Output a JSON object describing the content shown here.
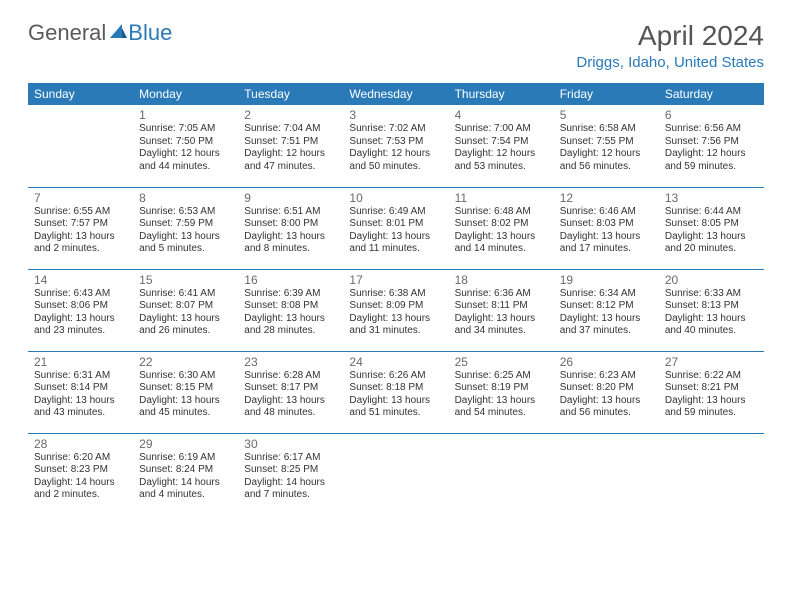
{
  "logo": {
    "text1": "General",
    "text2": "Blue"
  },
  "title": "April 2024",
  "location": "Driggs, Idaho, United States",
  "dayHeaders": [
    "Sunday",
    "Monday",
    "Tuesday",
    "Wednesday",
    "Thursday",
    "Friday",
    "Saturday"
  ],
  "colors": {
    "header_bg": "#2a7ab8",
    "header_text": "#ffffff",
    "accent": "#2a7ab8",
    "body_text": "#333333",
    "day_num": "#6a6a6a"
  },
  "weeks": [
    [
      {
        "num": "",
        "sunrise": "",
        "sunset": "",
        "daylight1": "",
        "daylight2": ""
      },
      {
        "num": "1",
        "sunrise": "Sunrise: 7:05 AM",
        "sunset": "Sunset: 7:50 PM",
        "daylight1": "Daylight: 12 hours",
        "daylight2": "and 44 minutes."
      },
      {
        "num": "2",
        "sunrise": "Sunrise: 7:04 AM",
        "sunset": "Sunset: 7:51 PM",
        "daylight1": "Daylight: 12 hours",
        "daylight2": "and 47 minutes."
      },
      {
        "num": "3",
        "sunrise": "Sunrise: 7:02 AM",
        "sunset": "Sunset: 7:53 PM",
        "daylight1": "Daylight: 12 hours",
        "daylight2": "and 50 minutes."
      },
      {
        "num": "4",
        "sunrise": "Sunrise: 7:00 AM",
        "sunset": "Sunset: 7:54 PM",
        "daylight1": "Daylight: 12 hours",
        "daylight2": "and 53 minutes."
      },
      {
        "num": "5",
        "sunrise": "Sunrise: 6:58 AM",
        "sunset": "Sunset: 7:55 PM",
        "daylight1": "Daylight: 12 hours",
        "daylight2": "and 56 minutes."
      },
      {
        "num": "6",
        "sunrise": "Sunrise: 6:56 AM",
        "sunset": "Sunset: 7:56 PM",
        "daylight1": "Daylight: 12 hours",
        "daylight2": "and 59 minutes."
      }
    ],
    [
      {
        "num": "7",
        "sunrise": "Sunrise: 6:55 AM",
        "sunset": "Sunset: 7:57 PM",
        "daylight1": "Daylight: 13 hours",
        "daylight2": "and 2 minutes."
      },
      {
        "num": "8",
        "sunrise": "Sunrise: 6:53 AM",
        "sunset": "Sunset: 7:59 PM",
        "daylight1": "Daylight: 13 hours",
        "daylight2": "and 5 minutes."
      },
      {
        "num": "9",
        "sunrise": "Sunrise: 6:51 AM",
        "sunset": "Sunset: 8:00 PM",
        "daylight1": "Daylight: 13 hours",
        "daylight2": "and 8 minutes."
      },
      {
        "num": "10",
        "sunrise": "Sunrise: 6:49 AM",
        "sunset": "Sunset: 8:01 PM",
        "daylight1": "Daylight: 13 hours",
        "daylight2": "and 11 minutes."
      },
      {
        "num": "11",
        "sunrise": "Sunrise: 6:48 AM",
        "sunset": "Sunset: 8:02 PM",
        "daylight1": "Daylight: 13 hours",
        "daylight2": "and 14 minutes."
      },
      {
        "num": "12",
        "sunrise": "Sunrise: 6:46 AM",
        "sunset": "Sunset: 8:03 PM",
        "daylight1": "Daylight: 13 hours",
        "daylight2": "and 17 minutes."
      },
      {
        "num": "13",
        "sunrise": "Sunrise: 6:44 AM",
        "sunset": "Sunset: 8:05 PM",
        "daylight1": "Daylight: 13 hours",
        "daylight2": "and 20 minutes."
      }
    ],
    [
      {
        "num": "14",
        "sunrise": "Sunrise: 6:43 AM",
        "sunset": "Sunset: 8:06 PM",
        "daylight1": "Daylight: 13 hours",
        "daylight2": "and 23 minutes."
      },
      {
        "num": "15",
        "sunrise": "Sunrise: 6:41 AM",
        "sunset": "Sunset: 8:07 PM",
        "daylight1": "Daylight: 13 hours",
        "daylight2": "and 26 minutes."
      },
      {
        "num": "16",
        "sunrise": "Sunrise: 6:39 AM",
        "sunset": "Sunset: 8:08 PM",
        "daylight1": "Daylight: 13 hours",
        "daylight2": "and 28 minutes."
      },
      {
        "num": "17",
        "sunrise": "Sunrise: 6:38 AM",
        "sunset": "Sunset: 8:09 PM",
        "daylight1": "Daylight: 13 hours",
        "daylight2": "and 31 minutes."
      },
      {
        "num": "18",
        "sunrise": "Sunrise: 6:36 AM",
        "sunset": "Sunset: 8:11 PM",
        "daylight1": "Daylight: 13 hours",
        "daylight2": "and 34 minutes."
      },
      {
        "num": "19",
        "sunrise": "Sunrise: 6:34 AM",
        "sunset": "Sunset: 8:12 PM",
        "daylight1": "Daylight: 13 hours",
        "daylight2": "and 37 minutes."
      },
      {
        "num": "20",
        "sunrise": "Sunrise: 6:33 AM",
        "sunset": "Sunset: 8:13 PM",
        "daylight1": "Daylight: 13 hours",
        "daylight2": "and 40 minutes."
      }
    ],
    [
      {
        "num": "21",
        "sunrise": "Sunrise: 6:31 AM",
        "sunset": "Sunset: 8:14 PM",
        "daylight1": "Daylight: 13 hours",
        "daylight2": "and 43 minutes."
      },
      {
        "num": "22",
        "sunrise": "Sunrise: 6:30 AM",
        "sunset": "Sunset: 8:15 PM",
        "daylight1": "Daylight: 13 hours",
        "daylight2": "and 45 minutes."
      },
      {
        "num": "23",
        "sunrise": "Sunrise: 6:28 AM",
        "sunset": "Sunset: 8:17 PM",
        "daylight1": "Daylight: 13 hours",
        "daylight2": "and 48 minutes."
      },
      {
        "num": "24",
        "sunrise": "Sunrise: 6:26 AM",
        "sunset": "Sunset: 8:18 PM",
        "daylight1": "Daylight: 13 hours",
        "daylight2": "and 51 minutes."
      },
      {
        "num": "25",
        "sunrise": "Sunrise: 6:25 AM",
        "sunset": "Sunset: 8:19 PM",
        "daylight1": "Daylight: 13 hours",
        "daylight2": "and 54 minutes."
      },
      {
        "num": "26",
        "sunrise": "Sunrise: 6:23 AM",
        "sunset": "Sunset: 8:20 PM",
        "daylight1": "Daylight: 13 hours",
        "daylight2": "and 56 minutes."
      },
      {
        "num": "27",
        "sunrise": "Sunrise: 6:22 AM",
        "sunset": "Sunset: 8:21 PM",
        "daylight1": "Daylight: 13 hours",
        "daylight2": "and 59 minutes."
      }
    ],
    [
      {
        "num": "28",
        "sunrise": "Sunrise: 6:20 AM",
        "sunset": "Sunset: 8:23 PM",
        "daylight1": "Daylight: 14 hours",
        "daylight2": "and 2 minutes."
      },
      {
        "num": "29",
        "sunrise": "Sunrise: 6:19 AM",
        "sunset": "Sunset: 8:24 PM",
        "daylight1": "Daylight: 14 hours",
        "daylight2": "and 4 minutes."
      },
      {
        "num": "30",
        "sunrise": "Sunrise: 6:17 AM",
        "sunset": "Sunset: 8:25 PM",
        "daylight1": "Daylight: 14 hours",
        "daylight2": "and 7 minutes."
      },
      {
        "num": "",
        "sunrise": "",
        "sunset": "",
        "daylight1": "",
        "daylight2": ""
      },
      {
        "num": "",
        "sunrise": "",
        "sunset": "",
        "daylight1": "",
        "daylight2": ""
      },
      {
        "num": "",
        "sunrise": "",
        "sunset": "",
        "daylight1": "",
        "daylight2": ""
      },
      {
        "num": "",
        "sunrise": "",
        "sunset": "",
        "daylight1": "",
        "daylight2": ""
      }
    ]
  ]
}
